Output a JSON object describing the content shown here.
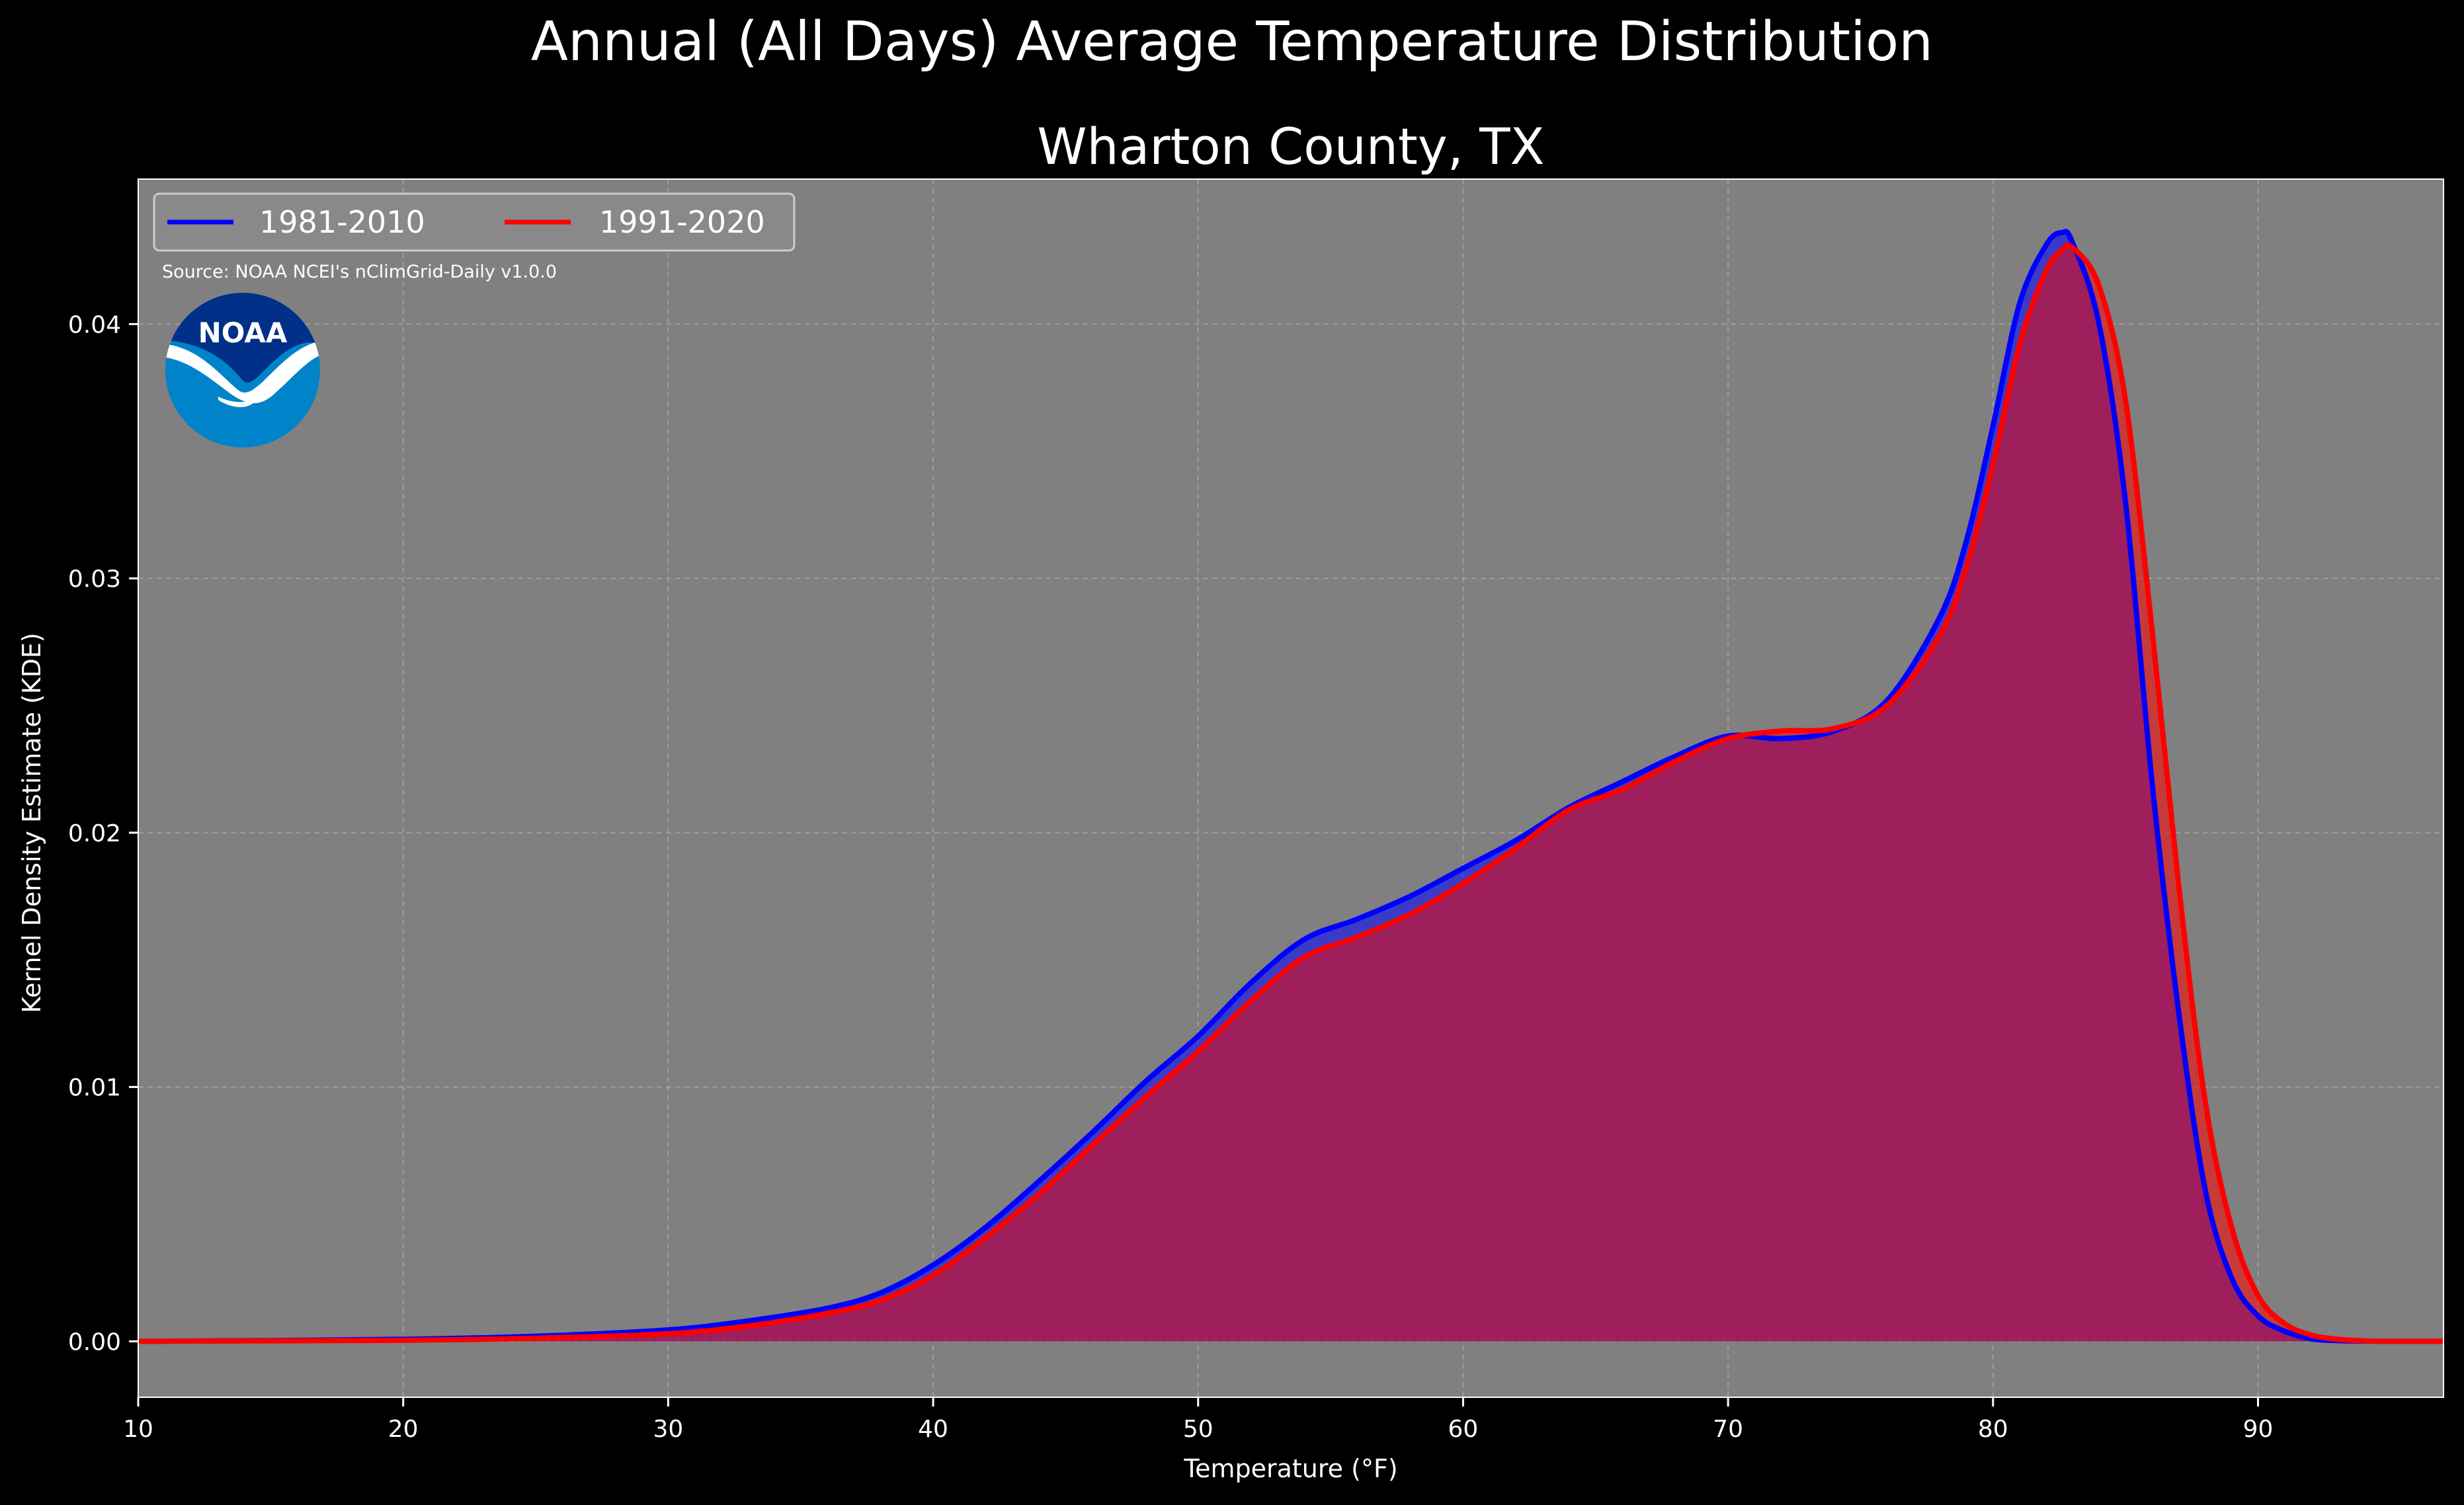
{
  "title": "Annual (All Days) Average Temperature Distribution",
  "subtitle": "Wharton County, TX",
  "source": "Source: NOAA NCEI's nClimGrid-Daily v1.0.0",
  "logo_text": "NOAA",
  "colors": {
    "background": "#000000",
    "plot_background": "#808080",
    "series_1981": "#0000ff",
    "series_1991": "#ff0000",
    "fill_overlap": "#9e1f5c",
    "logo_dark": "#003087",
    "logo_light": "#0083c9"
  },
  "chart_data": {
    "type": "area",
    "title": "Wharton County, TX",
    "xlabel": "Temperature (°F)",
    "ylabel": "Kernel Density Estimate (KDE)",
    "xlim": [
      10,
      97
    ],
    "ylim": [
      -0.0022,
      0.0457
    ],
    "xticks": [
      10,
      20,
      30,
      40,
      50,
      60,
      70,
      80,
      90
    ],
    "yticks": [
      "0.00",
      "0.01",
      "0.02",
      "0.03",
      "0.04"
    ],
    "grid": true,
    "legend": "top-left",
    "x": [
      10,
      15,
      20,
      25,
      30,
      33,
      36,
      38,
      40,
      42,
      44,
      46,
      48,
      50,
      52,
      54,
      56,
      58,
      60,
      62,
      64,
      66,
      68,
      70,
      72,
      74,
      76,
      78,
      79,
      80,
      81,
      82,
      82.6,
      83,
      84,
      85,
      86,
      87,
      88,
      89,
      90,
      91,
      92,
      93,
      94,
      95,
      97
    ],
    "series": [
      {
        "name": "1981-2010",
        "values": [
          0.0,
          3e-05,
          8e-05,
          0.0002,
          0.00045,
          0.0008,
          0.0013,
          0.0019,
          0.003,
          0.0045,
          0.0063,
          0.0082,
          0.0102,
          0.012,
          0.0141,
          0.0158,
          0.0166,
          0.0175,
          0.0186,
          0.0197,
          0.021,
          0.022,
          0.023,
          0.0238,
          0.0237,
          0.024,
          0.0252,
          0.0285,
          0.0315,
          0.036,
          0.0408,
          0.0431,
          0.0436,
          0.0432,
          0.04,
          0.033,
          0.022,
          0.013,
          0.006,
          0.0025,
          0.001,
          0.0004,
          0.0001,
          3e-05,
          1e-05,
          0.0,
          0.0
        ]
      },
      {
        "name": "1991-2020",
        "values": [
          0.0,
          2e-05,
          4e-05,
          0.00012,
          0.0003,
          0.0006,
          0.0011,
          0.0016,
          0.0026,
          0.0041,
          0.0058,
          0.0077,
          0.0096,
          0.0114,
          0.0134,
          0.0151,
          0.0159,
          0.0168,
          0.018,
          0.0194,
          0.0209,
          0.0217,
          0.0228,
          0.0237,
          0.024,
          0.0241,
          0.025,
          0.0278,
          0.0305,
          0.0345,
          0.0392,
          0.0421,
          0.0429,
          0.043,
          0.0415,
          0.037,
          0.028,
          0.018,
          0.0095,
          0.0045,
          0.0018,
          0.0007,
          0.00025,
          8e-05,
          2e-05,
          0.0,
          0.0
        ]
      }
    ]
  }
}
